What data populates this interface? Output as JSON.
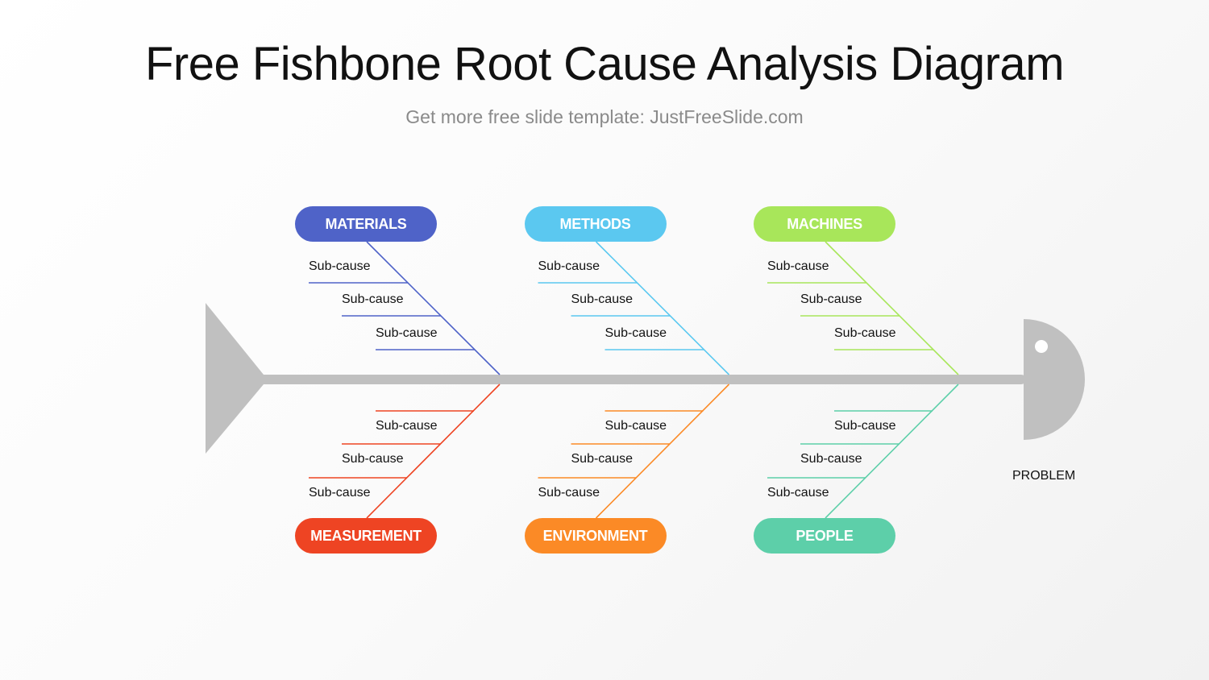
{
  "title": "Free Fishbone Root Cause Analysis Diagram",
  "subtitle": "Get more free slide template: JustFreeSlide.com",
  "problem_label": "PROBLEM",
  "spine_color": "#c0c0c0",
  "categories": [
    {
      "label": "MATERIALS",
      "color": "#4f63c8",
      "position": "top",
      "sub_causes": [
        "Sub-cause",
        "Sub-cause",
        "Sub-cause"
      ]
    },
    {
      "label": "METHODS",
      "color": "#5bc8f0",
      "position": "top",
      "sub_causes": [
        "Sub-cause",
        "Sub-cause",
        "Sub-cause"
      ]
    },
    {
      "label": "MACHINES",
      "color": "#a8e65a",
      "position": "top",
      "sub_causes": [
        "Sub-cause",
        "Sub-cause",
        "Sub-cause"
      ]
    },
    {
      "label": "MEASUREMENT",
      "color": "#ee4423",
      "position": "bottom",
      "sub_causes": [
        "Sub-cause",
        "Sub-cause",
        "Sub-cause"
      ]
    },
    {
      "label": "ENVIRONMENT",
      "color": "#fb8a26",
      "position": "bottom",
      "sub_causes": [
        "Sub-cause",
        "Sub-cause",
        "Sub-cause"
      ]
    },
    {
      "label": "PEOPLE",
      "color": "#5dcfa9",
      "position": "bottom",
      "sub_causes": [
        "Sub-cause",
        "Sub-cause",
        "Sub-cause"
      ]
    }
  ]
}
